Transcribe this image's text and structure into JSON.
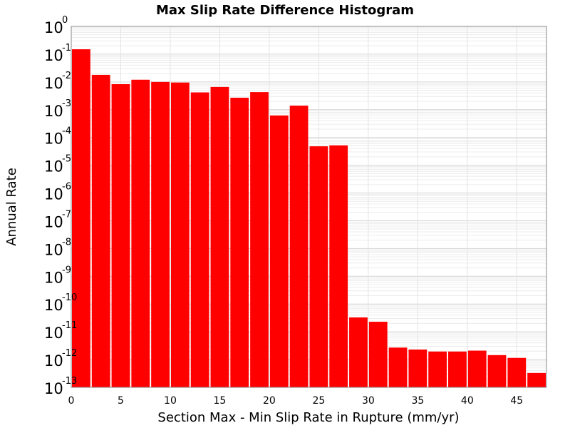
{
  "chart_data": {
    "type": "bar",
    "title": "Max Slip Rate Difference Histogram",
    "xlabel": "Section Max - Min Slip Rate in Rupture (mm/yr)",
    "ylabel": "Annual Rate",
    "y_scale": "log",
    "xlim": [
      0,
      48
    ],
    "ylim": [
      1e-13,
      1
    ],
    "x_ticks": [
      "0",
      "5",
      "10",
      "15",
      "20",
      "25",
      "30",
      "35",
      "40",
      "45"
    ],
    "y_ticks": [
      {
        "base": "10",
        "exp": "0"
      },
      {
        "base": "10",
        "exp": "-1"
      },
      {
        "base": "10",
        "exp": "-2"
      },
      {
        "base": "10",
        "exp": "-3"
      },
      {
        "base": "10",
        "exp": "-4"
      },
      {
        "base": "10",
        "exp": "-5"
      },
      {
        "base": "10",
        "exp": "-6"
      },
      {
        "base": "10",
        "exp": "-7"
      },
      {
        "base": "10",
        "exp": "-8"
      },
      {
        "base": "10",
        "exp": "-9"
      },
      {
        "base": "10",
        "exp": "-10"
      },
      {
        "base": "10",
        "exp": "-11"
      },
      {
        "base": "10",
        "exp": "-12"
      },
      {
        "base": "10",
        "exp": "-13"
      }
    ],
    "bin_width": 2,
    "bins": [
      {
        "x": 1,
        "y": 0.15
      },
      {
        "x": 3,
        "y": 0.018
      },
      {
        "x": 5,
        "y": 0.0083
      },
      {
        "x": 7,
        "y": 0.012
      },
      {
        "x": 9,
        "y": 0.01
      },
      {
        "x": 11,
        "y": 0.0095
      },
      {
        "x": 13,
        "y": 0.0042
      },
      {
        "x": 15,
        "y": 0.0066
      },
      {
        "x": 17,
        "y": 0.0027
      },
      {
        "x": 19,
        "y": 0.0043
      },
      {
        "x": 21,
        "y": 0.00062
      },
      {
        "x": 23,
        "y": 0.0014
      },
      {
        "x": 25,
        "y": 4.8e-05
      },
      {
        "x": 27,
        "y": 5.2e-05
      },
      {
        "x": 29,
        "y": 3.3e-11
      },
      {
        "x": 31,
        "y": 2.3e-11
      },
      {
        "x": 33,
        "y": 2.7e-12
      },
      {
        "x": 35,
        "y": 2.3e-12
      },
      {
        "x": 37,
        "y": 1.95e-12
      },
      {
        "x": 39,
        "y": 1.95e-12
      },
      {
        "x": 41,
        "y": 2.1e-12
      },
      {
        "x": 43,
        "y": 1.45e-12
      },
      {
        "x": 45,
        "y": 1.15e-12
      },
      {
        "x": 47,
        "y": 3.3e-13
      }
    ],
    "bar_color": "#ff0000",
    "grid": true,
    "legend": "none"
  }
}
